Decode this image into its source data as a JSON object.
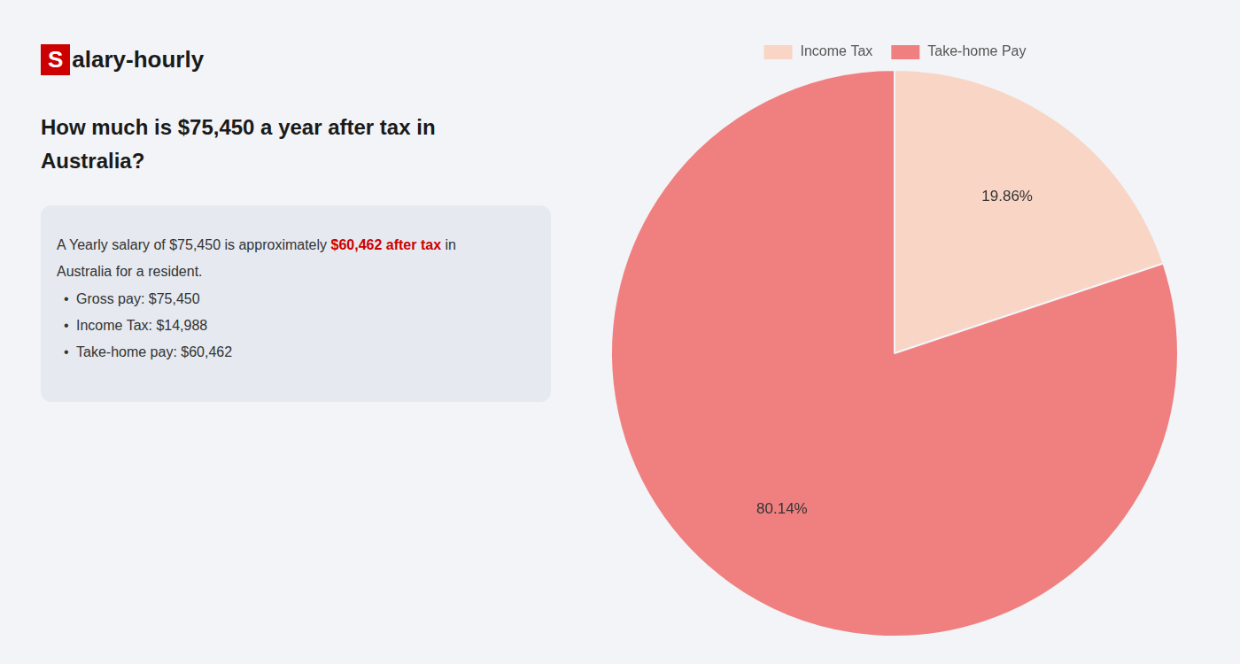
{
  "chart_data": {
    "type": "pie",
    "title": [
      "How much is $75,450 a year after tax in",
      "Australia?"
    ],
    "categories": [
      "Income Tax",
      "Take-home Pay"
    ],
    "values": [
      19.86,
      80.14
    ],
    "value_labels": [
      "19.86%",
      "80.14%"
    ],
    "colors": [
      "#f9d5c5",
      "#f08080"
    ],
    "data_labels": true,
    "legend": "top",
    "annotations": [
      [
        {
          "text": "S",
          "color": "#cc0000"
        },
        {
          "text": "alary-hourly"
        }
      ],
      [
        {
          "text": "A Yearly salary of $75,450 is approximately "
        },
        {
          "text": "$60,462 after tax",
          "color": "#cc0000"
        },
        {
          "text": " in"
        }
      ],
      [
        {
          "text": "Australia for a resident."
        }
      ],
      [
        {
          "text": "•"
        },
        {
          "text": "Gross pay: $75,450"
        }
      ],
      [
        {
          "text": "•"
        },
        {
          "text": "Income Tax: $14,988"
        }
      ],
      [
        {
          "text": "•"
        },
        {
          "text": "Take-home pay: $60,462"
        }
      ]
    ]
  }
}
